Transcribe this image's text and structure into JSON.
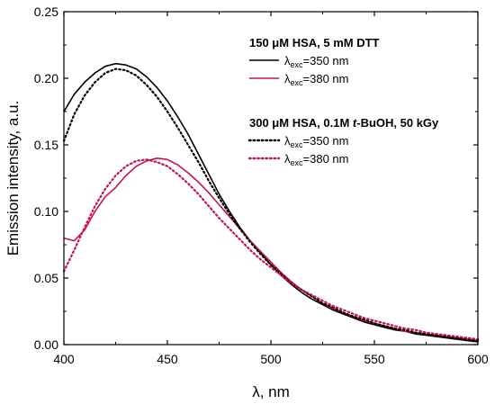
{
  "chart_data": {
    "type": "line",
    "xlabel": "λ, nm",
    "ylabel": "Emission intensity, a.u.",
    "xlim": [
      400,
      600
    ],
    "ylim": [
      0,
      0.25
    ],
    "x_ticks": [
      400,
      450,
      500,
      550,
      600
    ],
    "x_tick_labels": [
      "400",
      "450",
      "500",
      "550",
      "600"
    ],
    "y_ticks": [
      0,
      0.05,
      0.1,
      0.15,
      0.2,
      0.25
    ],
    "y_tick_labels": [
      "0.00",
      "0.05",
      "0.10",
      "0.15",
      "0.20",
      "0.25"
    ],
    "grid": false,
    "legend_position": "top-right",
    "legend_groups": [
      {
        "title": "150 μM HSA, 5 mM DTT",
        "title_prefix": "",
        "title_italic": "",
        "title_suffix": ""
      },
      {
        "title": "",
        "title_prefix": "300 μM HSA, 0.1M ",
        "title_italic": "t",
        "title_suffix": "-BuOH, 50 kGy"
      }
    ],
    "series": [
      {
        "name": "λexc=350 nm",
        "label_main": "λ",
        "label_sub": "exc",
        "label_rest": "=350 nm",
        "group": 0,
        "color": "#000000",
        "dash": "solid",
        "x": [
          400,
          405,
          410,
          415,
          420,
          425,
          430,
          435,
          440,
          445,
          450,
          455,
          460,
          465,
          470,
          475,
          480,
          485,
          490,
          495,
          500,
          505,
          510,
          515,
          520,
          525,
          530,
          535,
          540,
          545,
          550,
          555,
          560,
          565,
          570,
          575,
          580,
          585,
          590,
          595,
          600
        ],
        "y": [
          0.175,
          0.188,
          0.197,
          0.204,
          0.209,
          0.211,
          0.21,
          0.207,
          0.201,
          0.193,
          0.183,
          0.171,
          0.158,
          0.143,
          0.128,
          0.113,
          0.1,
          0.088,
          0.078,
          0.069,
          0.06,
          0.052,
          0.045,
          0.039,
          0.034,
          0.03,
          0.026,
          0.023,
          0.02,
          0.017,
          0.015,
          0.013,
          0.011,
          0.01,
          0.008,
          0.007,
          0.006,
          0.005,
          0.004,
          0.003,
          0.002
        ]
      },
      {
        "name": "λexc=380 nm",
        "label_main": "λ",
        "label_sub": "exc",
        "label_rest": "=380 nm",
        "group": 0,
        "color": "#c4144f",
        "dash": "solid",
        "x": [
          400,
          405,
          410,
          415,
          420,
          425,
          430,
          435,
          440,
          445,
          450,
          455,
          460,
          465,
          470,
          475,
          480,
          485,
          490,
          495,
          500,
          505,
          510,
          515,
          520,
          525,
          530,
          535,
          540,
          545,
          550,
          555,
          560,
          565,
          570,
          575,
          580,
          585,
          590,
          595,
          600
        ],
        "y": [
          0.08,
          0.078,
          0.086,
          0.1,
          0.111,
          0.118,
          0.127,
          0.134,
          0.138,
          0.14,
          0.139,
          0.135,
          0.129,
          0.122,
          0.114,
          0.105,
          0.096,
          0.087,
          0.078,
          0.07,
          0.062,
          0.054,
          0.047,
          0.041,
          0.036,
          0.031,
          0.027,
          0.024,
          0.021,
          0.018,
          0.016,
          0.014,
          0.012,
          0.01,
          0.009,
          0.008,
          0.007,
          0.006,
          0.005,
          0.004,
          0.003
        ]
      },
      {
        "name": "λexc=350 nm",
        "label_main": "λ",
        "label_sub": "exc",
        "label_rest": "=350 nm",
        "group": 1,
        "color": "#000000",
        "dash": "dotted",
        "x": [
          400,
          405,
          410,
          415,
          420,
          425,
          430,
          435,
          440,
          445,
          450,
          455,
          460,
          465,
          470,
          475,
          480,
          485,
          490,
          495,
          500,
          505,
          510,
          515,
          520,
          525,
          530,
          535,
          540,
          545,
          550,
          555,
          560,
          565,
          570,
          575,
          580,
          585,
          590,
          595,
          600
        ],
        "y": [
          0.153,
          0.173,
          0.187,
          0.197,
          0.204,
          0.207,
          0.206,
          0.202,
          0.195,
          0.186,
          0.175,
          0.163,
          0.15,
          0.137,
          0.123,
          0.11,
          0.098,
          0.087,
          0.077,
          0.068,
          0.06,
          0.053,
          0.046,
          0.041,
          0.036,
          0.031,
          0.028,
          0.024,
          0.021,
          0.019,
          0.016,
          0.014,
          0.012,
          0.011,
          0.009,
          0.008,
          0.007,
          0.006,
          0.005,
          0.004,
          0.003
        ]
      },
      {
        "name": "λexc=380 nm",
        "label_main": "λ",
        "label_sub": "exc",
        "label_rest": "=380 nm",
        "group": 1,
        "color": "#c4144f",
        "dash": "dotted",
        "x": [
          400,
          405,
          410,
          415,
          420,
          425,
          430,
          435,
          440,
          445,
          450,
          455,
          460,
          465,
          470,
          475,
          480,
          485,
          490,
          495,
          500,
          505,
          510,
          515,
          520,
          525,
          530,
          535,
          540,
          545,
          550,
          555,
          560,
          565,
          570,
          575,
          580,
          585,
          590,
          595,
          600
        ],
        "y": [
          0.055,
          0.071,
          0.088,
          0.104,
          0.117,
          0.127,
          0.134,
          0.138,
          0.139,
          0.137,
          0.134,
          0.128,
          0.121,
          0.113,
          0.104,
          0.095,
          0.087,
          0.079,
          0.071,
          0.064,
          0.058,
          0.052,
          0.046,
          0.041,
          0.037,
          0.033,
          0.029,
          0.026,
          0.023,
          0.02,
          0.018,
          0.016,
          0.014,
          0.012,
          0.011,
          0.009,
          0.008,
          0.007,
          0.006,
          0.005,
          0.004
        ]
      }
    ]
  }
}
